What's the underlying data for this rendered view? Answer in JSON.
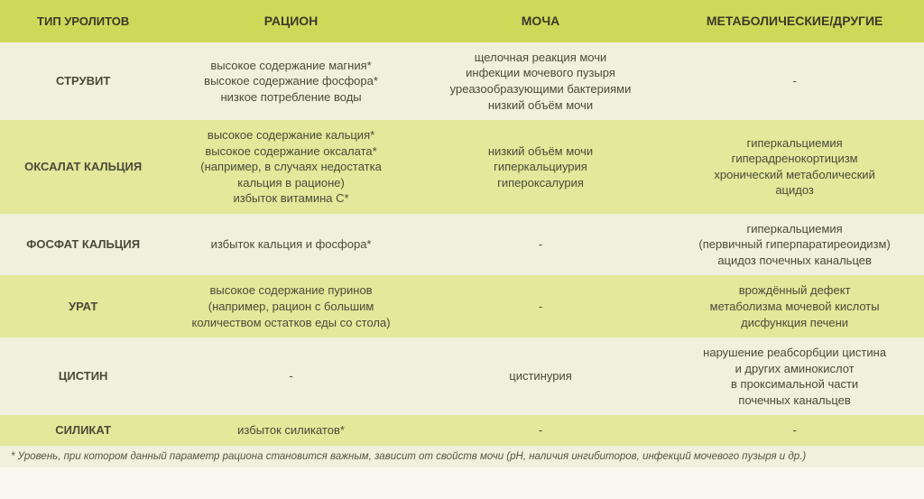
{
  "colors": {
    "header_bg": "#cfd959",
    "row_even_bg": "#f0f0dc",
    "row_odd_bg": "#e3e89a",
    "text": "#4a4a3a",
    "header_text": "#3a3a28"
  },
  "columns": [
    {
      "label": "ТИП УРОЛИТОВ",
      "width": "18%"
    },
    {
      "label": "РАЦИОН",
      "width": "27%"
    },
    {
      "label": "МОЧА",
      "width": "27%"
    },
    {
      "label": "МЕТАБОЛИЧЕСКИЕ/ДРУГИЕ",
      "width": "28%"
    }
  ],
  "rows": [
    {
      "type": "СТРУВИТ",
      "diet": [
        "высокое содержание магния*",
        "высокое содержание фосфора*",
        "низкое потребление воды"
      ],
      "urine": [
        "щелочная реакция мочи",
        "инфекции мочевого пузыря",
        "уреазообразующими бактериями",
        "низкий объём мочи"
      ],
      "metabolic": [
        "-"
      ]
    },
    {
      "type": "ОКСАЛАТ КАЛЬЦИЯ",
      "diet": [
        "высокое содержание кальция*",
        "высокое содержание оксалата*",
        "(например, в случаях недостатка",
        "кальция в рационе)",
        "избыток витамина С*"
      ],
      "urine": [
        "низкий объём мочи",
        "гиперкальциурия",
        "гипероксалурия"
      ],
      "metabolic": [
        "гиперкальциемия",
        "гиперадренокортицизм",
        "хронический метаболический",
        "ацидоз"
      ]
    },
    {
      "type": "ФОСФАТ КАЛЬЦИЯ",
      "diet": [
        "избыток кальция и фосфора*"
      ],
      "urine": [
        "-"
      ],
      "metabolic": [
        "гиперкальциемия",
        "(первичный гиперпаратиреоидизм)",
        "ацидоз почечных канальцев"
      ]
    },
    {
      "type": "УРАТ",
      "diet": [
        "высокое содержание пуринов",
        "(например, рацион с большим",
        "количеством остатков еды со стола)"
      ],
      "urine": [
        "-"
      ],
      "metabolic": [
        "врождённый дефект",
        "метаболизма мочевой кислоты",
        "дисфункция печени"
      ]
    },
    {
      "type": "ЦИСТИН",
      "diet": [
        "-"
      ],
      "urine": [
        "цистинурия"
      ],
      "metabolic": [
        "нарушение реабсорбции цистина",
        "и других аминокислот",
        "в проксимальной части",
        "почечных канальцев"
      ]
    },
    {
      "type": "СИЛИКАТ",
      "diet": [
        "избыток силикатов*"
      ],
      "urine": [
        "-"
      ],
      "metabolic": [
        "-"
      ]
    }
  ],
  "footnote": "* Уровень, при котором данный параметр рациона становится важным, зависит от свойств мочи (рН, наличия ингибиторов, инфекций мочевого пузыря и др.)"
}
